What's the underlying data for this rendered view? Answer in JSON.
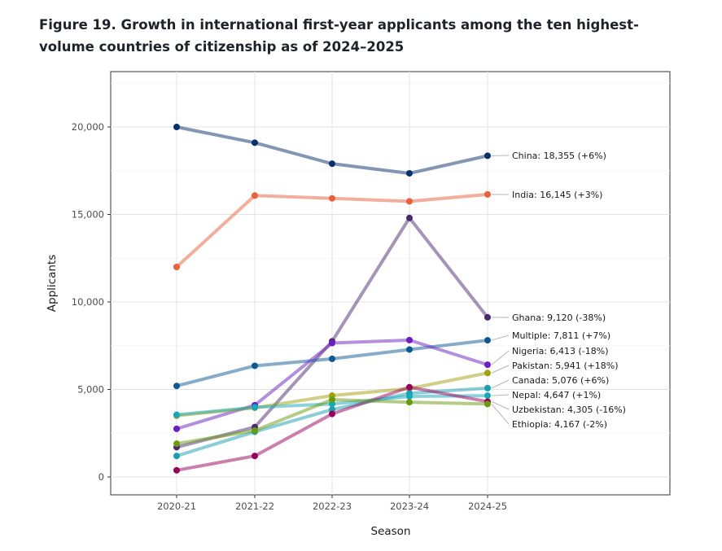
{
  "title": "Figure 19. Growth in international first-year applicants among the ten highest-volume countries of citizenship as of 2024–2025",
  "chart_data": {
    "type": "line",
    "title": "Figure 19. Growth in international first-year applicants among the ten highest-volume countries of citizenship as of 2024–2025",
    "xlabel": "Season",
    "ylabel": "Applicants",
    "categories": [
      "2020-21",
      "2021-22",
      "2022-23",
      "2023-24",
      "2024-25"
    ],
    "ylim": [
      0,
      20000
    ],
    "yticks": [
      0,
      5000,
      10000,
      15000,
      20000
    ],
    "ytick_labels": [
      "0",
      "5,000",
      "10,000",
      "15,000",
      "20,000"
    ],
    "grid": true,
    "legend": "none (direct labels at right end of lines)",
    "series": [
      {
        "name": "China",
        "label": "China: 18,355 (+6%)",
        "color": "#08306b",
        "values": [
          20000,
          19100,
          17900,
          17350,
          18355
        ]
      },
      {
        "name": "India",
        "label": "India: 16,145 (+3%)",
        "color": "#e8603c",
        "values": [
          12000,
          16080,
          15920,
          15750,
          16145
        ]
      },
      {
        "name": "Ghana",
        "label": "Ghana: 9,120 (-38%)",
        "color": "#4a2a6e",
        "values": [
          1700,
          2850,
          7750,
          14800,
          9120
        ]
      },
      {
        "name": "Multiple",
        "label": "Multiple: 7,811 (+7%)",
        "color": "#0d5a93",
        "values": [
          5200,
          6350,
          6750,
          7280,
          7811
        ]
      },
      {
        "name": "Nigeria",
        "label": "Nigeria: 6,413 (-18%)",
        "color": "#6a1fc1",
        "values": [
          2750,
          4100,
          7650,
          7820,
          6413
        ]
      },
      {
        "name": "Pakistan",
        "label": "Pakistan: 5,941 (+18%)",
        "color": "#a3a010",
        "values": [
          3500,
          3950,
          4650,
          5050,
          5941
        ]
      },
      {
        "name": "Canada",
        "label": "Canada: 5,076 (+6%)",
        "color": "#1a9eb0",
        "values": [
          1200,
          2580,
          3850,
          4780,
          5076
        ]
      },
      {
        "name": "Nepal",
        "label": "Nepal: 4,647 (+1%)",
        "color": "#17a8b8",
        "values": [
          3550,
          3980,
          4170,
          4600,
          4647
        ]
      },
      {
        "name": "Uzbekistan",
        "label": "Uzbekistan: 4,305 (-16%)",
        "color": "#96005a",
        "values": [
          380,
          1200,
          3600,
          5130,
          4305
        ]
      },
      {
        "name": "Ethiopia",
        "label": "Ethiopia: 4,167 (-2%)",
        "color": "#6a9a10",
        "values": [
          1900,
          2650,
          4420,
          4270,
          4167
        ]
      }
    ]
  }
}
